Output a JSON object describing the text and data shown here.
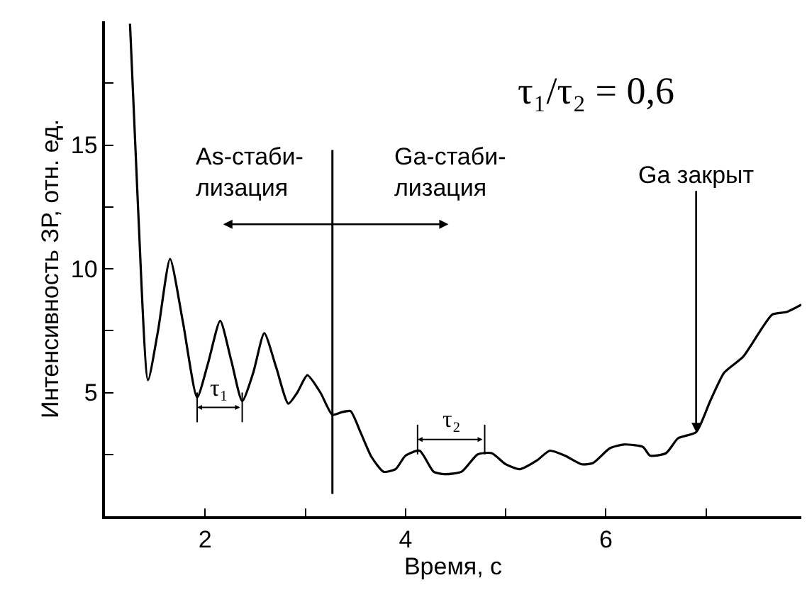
{
  "chart_data": {
    "type": "line",
    "xlabel": "Время, с",
    "ylabel": "Интенсивность ЗР, отн. ед.",
    "xlim": [
      1,
      7.95
    ],
    "ylim": [
      0,
      20
    ],
    "xticks": [
      2,
      {
        "value": 3,
        "label": null
      },
      4,
      {
        "value": 5,
        "label": null
      },
      6,
      {
        "value": 7,
        "label": null
      }
    ],
    "yticks": [
      {
        "value": 2.5,
        "label": null
      },
      5,
      {
        "value": 7.5,
        "label": null
      },
      10,
      {
        "value": 12.5,
        "label": null
      },
      15,
      {
        "value": 17.5,
        "label": null
      }
    ],
    "marker": "none",
    "line_style": "solid",
    "x": [
      1.25,
      1.33,
      1.43,
      1.53,
      1.65,
      1.78,
      1.92,
      2.03,
      2.15,
      2.26,
      2.37,
      2.48,
      2.59,
      2.71,
      2.83,
      2.92,
      3.02,
      3.15,
      3.27,
      3.36,
      3.45,
      3.55,
      3.66,
      3.78,
      3.9,
      4.0,
      4.14,
      4.28,
      4.39,
      4.56,
      4.72,
      4.86,
      5.0,
      5.14,
      5.31,
      5.44,
      5.59,
      5.76,
      5.87,
      6.04,
      6.18,
      6.37,
      6.44,
      6.6,
      6.72,
      6.9,
      7.04,
      7.18,
      7.37,
      7.66,
      7.8,
      7.95
    ],
    "series": [
      {
        "color": "#000000",
        "values": [
          19.9,
          12.5,
          5.5,
          7.5,
          10.4,
          7.8,
          4.8,
          6.2,
          7.9,
          6.3,
          4.65,
          5.8,
          7.4,
          6.0,
          4.55,
          5.0,
          5.7,
          5.0,
          4.1,
          4.2,
          4.25,
          3.4,
          2.4,
          1.8,
          1.9,
          2.45,
          2.65,
          1.8,
          1.7,
          1.8,
          2.5,
          2.55,
          2.1,
          1.9,
          2.25,
          2.65,
          2.45,
          2.1,
          2.15,
          2.75,
          2.9,
          2.8,
          2.45,
          2.55,
          3.15,
          3.4,
          4.65,
          5.8,
          6.45,
          8.15,
          8.25,
          8.55
        ]
      }
    ],
    "ref_lines": [
      {
        "axis": "x",
        "value": 3.27
      }
    ],
    "annotations": [
      "τ₁/τ₂ = 0,6",
      "As-стаби-\nлизация",
      "Ga-стаби-\nлизация",
      {
        "text": "Ga закрыт",
        "x": 6.9,
        "y": 3.4
      },
      "τ₁",
      "τ₂"
    ]
  }
}
